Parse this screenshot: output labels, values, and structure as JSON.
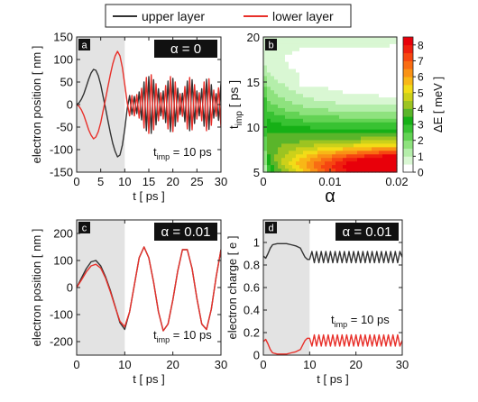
{
  "legend": {
    "entries": [
      {
        "label": "upper layer",
        "color": "#333333"
      },
      {
        "label": "lower layer",
        "color": "#e8302a"
      }
    ]
  },
  "colors": {
    "upper": "#333333",
    "lower": "#e8302a",
    "shade": "#e3e3e3",
    "badge_bg": "#111111",
    "badge_fg": "#ffffff"
  },
  "chart_data": [
    {
      "id": "a",
      "type": "line",
      "panel_label": "a",
      "badge": "α = 0",
      "annotation": {
        "main": "t",
        "sub": "imp",
        "rest": " = 10 ps"
      },
      "xlabel": "t [ ps ]",
      "ylabel": "electron position [ nm ]",
      "xlim": [
        0,
        30
      ],
      "ylim": [
        -150,
        150
      ],
      "xticks": [
        0,
        5,
        10,
        15,
        20,
        25,
        30
      ],
      "yticks": [
        -150,
        -100,
        -50,
        0,
        50,
        100,
        150
      ],
      "shaded_range": [
        0,
        10
      ],
      "series": [
        {
          "name": "upper layer",
          "color": "#333333",
          "x": [
            0,
            0.5,
            1,
            1.5,
            2,
            2.5,
            3,
            3.5,
            4,
            4.5,
            5,
            5.5,
            6,
            6.5,
            7,
            7.5,
            8,
            8.5,
            9,
            9.5,
            10,
            10.5,
            11,
            11.5,
            12,
            12.5,
            13,
            13.5,
            14,
            14.5,
            15,
            15.5,
            16,
            16.5,
            17,
            17.5,
            18,
            18.5,
            19,
            19.5,
            20,
            20.5,
            21,
            21.5,
            22,
            22.5,
            23,
            23.5,
            24,
            24.5,
            25,
            25.5,
            26,
            26.5,
            27,
            27.5,
            28,
            28.5,
            29,
            29.5,
            30
          ],
          "y": [
            0,
            4,
            12,
            24,
            40,
            56,
            70,
            78,
            76,
            64,
            44,
            18,
            -8,
            -36,
            -62,
            -86,
            -104,
            -116,
            -112,
            -90,
            -55,
            -10,
            20,
            -22,
            18,
            -20,
            28,
            -34,
            50,
            -58,
            62,
            -64,
            55,
            -45,
            35,
            -25,
            30,
            -40,
            52,
            -60,
            58,
            -48,
            36,
            -22,
            25,
            -38,
            52,
            -58,
            55,
            -42,
            30,
            -25,
            35,
            -48,
            56,
            -55,
            44,
            -30,
            24,
            -35,
            48
          ]
        },
        {
          "name": "lower layer",
          "color": "#e8302a",
          "x": [
            0,
            0.5,
            1,
            1.5,
            2,
            2.5,
            3,
            3.5,
            4,
            4.5,
            5,
            5.5,
            6,
            6.5,
            7,
            7.5,
            8,
            8.5,
            9,
            9.5,
            10,
            10.5,
            11,
            11.5,
            12,
            12.5,
            13,
            13.5,
            14,
            14.5,
            15,
            15.5,
            16,
            16.5,
            17,
            17.5,
            18,
            18.5,
            19,
            19.5,
            20,
            20.5,
            21,
            21.5,
            22,
            22.5,
            23,
            23.5,
            24,
            24.5,
            25,
            25.5,
            26,
            26.5,
            27,
            27.5,
            28,
            28.5,
            29,
            29.5,
            30
          ],
          "y": [
            0,
            -4,
            -12,
            -24,
            -40,
            -56,
            -68,
            -76,
            -72,
            -60,
            -40,
            -14,
            12,
            40,
            66,
            90,
            108,
            118,
            108,
            82,
            45,
            5,
            -25,
            20,
            -25,
            22,
            -30,
            36,
            -52,
            60,
            -64,
            66,
            -56,
            46,
            -36,
            26,
            -32,
            42,
            -54,
            62,
            -60,
            50,
            -38,
            24,
            -26,
            40,
            -54,
            60,
            -56,
            44,
            -32,
            26,
            -36,
            50,
            -58,
            57,
            -46,
            32,
            -26,
            37,
            -50
          ]
        }
      ]
    },
    {
      "id": "b",
      "type": "heatmap",
      "panel_label": "b",
      "xlabel": "α",
      "ylabel": {
        "main": "t",
        "sub": "imp",
        "rest": " [ ps ]"
      },
      "xlim": [
        0,
        0.02
      ],
      "ylim": [
        5,
        20
      ],
      "xticks": [
        0,
        0.01,
        0.02
      ],
      "yticks": [
        5,
        10,
        15,
        20
      ],
      "colorbar": {
        "label": "ΔE [ meV ]",
        "range": [
          0,
          8.5
        ],
        "ticks": [
          0,
          1,
          2,
          3,
          4,
          5,
          6,
          7,
          8
        ],
        "colors": [
          "#ffffff",
          "#d9f7d3",
          "#b4eeaa",
          "#8ee27e",
          "#63d354",
          "#38c232",
          "#16b016",
          "#5ab52a",
          "#9cc421",
          "#ccd11a",
          "#f2dc17",
          "#f8b716",
          "#f99215",
          "#f96c13",
          "#f64611",
          "#ef1f0e",
          "#e8000a"
        ]
      },
      "model": "ΔE(α, t_imp) contour map; maximum ≈ 8.4 meV near α = 0.018, t_imp = 5.5 ps; ΔE ≈ 0 in the white region near α ≥ 0.004, t_imp ≈ 15–19 ps"
    },
    {
      "id": "c",
      "type": "line",
      "panel_label": "c",
      "badge": "α = 0.01",
      "annotation": {
        "main": "t",
        "sub": "imp",
        "rest": " = 10 ps"
      },
      "xlabel": "t [ ps ]",
      "ylabel": "electron position [ nm ]",
      "xlim": [
        0,
        30
      ],
      "ylim": [
        -250,
        250
      ],
      "xticks": [
        0,
        10,
        20,
        30
      ],
      "yticks": [
        -200,
        -100,
        0,
        100,
        200
      ],
      "shaded_range": [
        0,
        10
      ],
      "series": [
        {
          "name": "upper layer",
          "color": "#333333",
          "x": [
            0,
            1,
            2,
            3,
            4,
            5,
            6,
            7,
            8,
            9,
            10,
            11,
            12,
            13,
            14,
            15,
            16,
            17,
            18,
            19,
            20,
            21,
            22,
            23,
            24,
            25,
            26,
            27,
            28,
            29,
            30
          ],
          "y": [
            0,
            35,
            70,
            95,
            100,
            80,
            40,
            -10,
            -70,
            -130,
            -155,
            -90,
            10,
            110,
            150,
            110,
            20,
            -90,
            -160,
            -135,
            -45,
            60,
            140,
            140,
            70,
            -40,
            -135,
            -155,
            -80,
            40,
            140
          ]
        },
        {
          "name": "lower layer",
          "color": "#e8302a",
          "x": [
            0,
            1,
            2,
            3,
            4,
            5,
            6,
            7,
            8,
            9,
            10,
            11,
            12,
            13,
            14,
            15,
            16,
            17,
            18,
            19,
            20,
            21,
            22,
            23,
            24,
            25,
            26,
            27,
            28,
            29,
            30
          ],
          "y": [
            0,
            28,
            58,
            80,
            86,
            72,
            35,
            -15,
            -72,
            -125,
            -145,
            -90,
            10,
            110,
            150,
            110,
            20,
            -90,
            -160,
            -135,
            -45,
            60,
            140,
            140,
            70,
            -40,
            -135,
            -155,
            -80,
            40,
            140
          ]
        }
      ]
    },
    {
      "id": "d",
      "type": "line",
      "panel_label": "d",
      "badge": "α = 0.01",
      "annotation": {
        "main": "t",
        "sub": "imp",
        "rest": " = 10 ps"
      },
      "xlabel": "t [ ps ]",
      "ylabel": "electron charge [ e ]",
      "xlim": [
        0,
        30
      ],
      "ylim": [
        0,
        1.2
      ],
      "xticks": [
        0,
        10,
        20,
        30
      ],
      "yticks": [
        0,
        0.2,
        0.4,
        0.6,
        0.8,
        1
      ],
      "shaded_range": [
        0,
        10
      ],
      "series": [
        {
          "name": "upper layer",
          "color": "#333333",
          "x": [
            0,
            0.5,
            1,
            1.5,
            2,
            3,
            4,
            5,
            6,
            7,
            8,
            8.5,
            9,
            9.5,
            10,
            10.5,
            11,
            11.5,
            12,
            12.5,
            13,
            13.5,
            14,
            14.5,
            15,
            15.5,
            16,
            16.5,
            17,
            17.5,
            18,
            18.5,
            19,
            19.5,
            20,
            20.5,
            21,
            21.5,
            22,
            22.5,
            23,
            23.5,
            24,
            24.5,
            25,
            25.5,
            26,
            26.5,
            27,
            27.5,
            28,
            28.5,
            29,
            29.5,
            30
          ],
          "y": [
            0.88,
            0.86,
            0.9,
            0.95,
            0.98,
            0.99,
            0.99,
            0.99,
            0.98,
            0.97,
            0.95,
            0.91,
            0.87,
            0.85,
            0.85,
            0.92,
            0.82,
            0.92,
            0.82,
            0.92,
            0.82,
            0.92,
            0.82,
            0.92,
            0.82,
            0.92,
            0.82,
            0.92,
            0.82,
            0.92,
            0.82,
            0.92,
            0.82,
            0.92,
            0.82,
            0.92,
            0.82,
            0.92,
            0.82,
            0.92,
            0.82,
            0.92,
            0.82,
            0.92,
            0.82,
            0.92,
            0.82,
            0.92,
            0.82,
            0.92,
            0.82,
            0.92,
            0.82,
            0.92,
            0.87
          ]
        },
        {
          "name": "lower layer",
          "color": "#e8302a",
          "x": [
            0,
            0.5,
            1,
            1.5,
            2,
            3,
            4,
            5,
            6,
            7,
            8,
            8.5,
            9,
            9.5,
            10,
            10.5,
            11,
            11.5,
            12,
            12.5,
            13,
            13.5,
            14,
            14.5,
            15,
            15.5,
            16,
            16.5,
            17,
            17.5,
            18,
            18.5,
            19,
            19.5,
            20,
            20.5,
            21,
            21.5,
            22,
            22.5,
            23,
            23.5,
            24,
            24.5,
            25,
            25.5,
            26,
            26.5,
            27,
            27.5,
            28,
            28.5,
            29,
            29.5,
            30
          ],
          "y": [
            0.12,
            0.14,
            0.1,
            0.05,
            0.02,
            0.01,
            0.01,
            0.01,
            0.02,
            0.03,
            0.05,
            0.09,
            0.13,
            0.15,
            0.15,
            0.08,
            0.18,
            0.08,
            0.18,
            0.08,
            0.18,
            0.08,
            0.18,
            0.08,
            0.18,
            0.08,
            0.18,
            0.08,
            0.18,
            0.08,
            0.18,
            0.08,
            0.18,
            0.08,
            0.18,
            0.08,
            0.18,
            0.08,
            0.18,
            0.08,
            0.18,
            0.08,
            0.18,
            0.08,
            0.18,
            0.08,
            0.18,
            0.08,
            0.18,
            0.08,
            0.18,
            0.08,
            0.18,
            0.08,
            0.13
          ]
        }
      ]
    }
  ]
}
